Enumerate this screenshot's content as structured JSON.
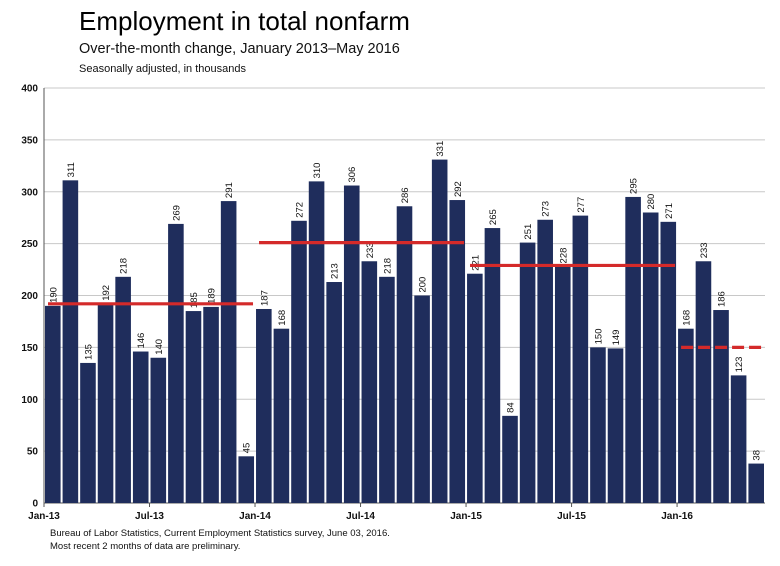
{
  "header": {
    "title": "Employment in total nonfarm",
    "subtitle": "Over-the-month change, January 2013–May 2016",
    "units": "Seasonally adjusted, in thousands"
  },
  "footer": {
    "source": "Bureau of Labor Statistics, Current Employment Statistics survey, June 03, 2016.",
    "note": "Most recent 2 months of data are preliminary."
  },
  "colors": {
    "bar": "#1f2d5c",
    "average": "#d42a2a",
    "grid": "#c8c8c8",
    "axis": "#555555"
  },
  "chart_data": {
    "type": "bar",
    "title": "Employment in total nonfarm",
    "subtitle": "Over-the-month change, January 2013–May 2016",
    "ylabel": "Seasonally adjusted, in thousands",
    "ylim": [
      0,
      400
    ],
    "yticks": [
      0,
      50,
      100,
      150,
      200,
      250,
      300,
      350,
      400
    ],
    "grid": true,
    "xtick_labels": [
      {
        "index": 0,
        "label": "Jan-13"
      },
      {
        "index": 6,
        "label": "Jul-13"
      },
      {
        "index": 12,
        "label": "Jan-14"
      },
      {
        "index": 18,
        "label": "Jul-14"
      },
      {
        "index": 24,
        "label": "Jan-15"
      },
      {
        "index": 30,
        "label": "Jul-15"
      },
      {
        "index": 36,
        "label": "Jan-16"
      }
    ],
    "values": [
      190,
      311,
      135,
      192,
      218,
      146,
      140,
      269,
      185,
      189,
      291,
      45,
      187,
      168,
      272,
      310,
      213,
      306,
      233,
      218,
      286,
      200,
      331,
      292,
      221,
      265,
      84,
      251,
      273,
      228,
      277,
      150,
      149,
      295,
      280,
      271,
      168,
      233,
      186,
      123,
      38
    ],
    "annual_averages": [
      {
        "start": 0,
        "end": 11,
        "value": 192
      },
      {
        "start": 12,
        "end": 23,
        "value": 251
      },
      {
        "start": 24,
        "end": 35,
        "value": 229
      },
      {
        "start": 36,
        "end": 40,
        "value": 150
      }
    ]
  }
}
